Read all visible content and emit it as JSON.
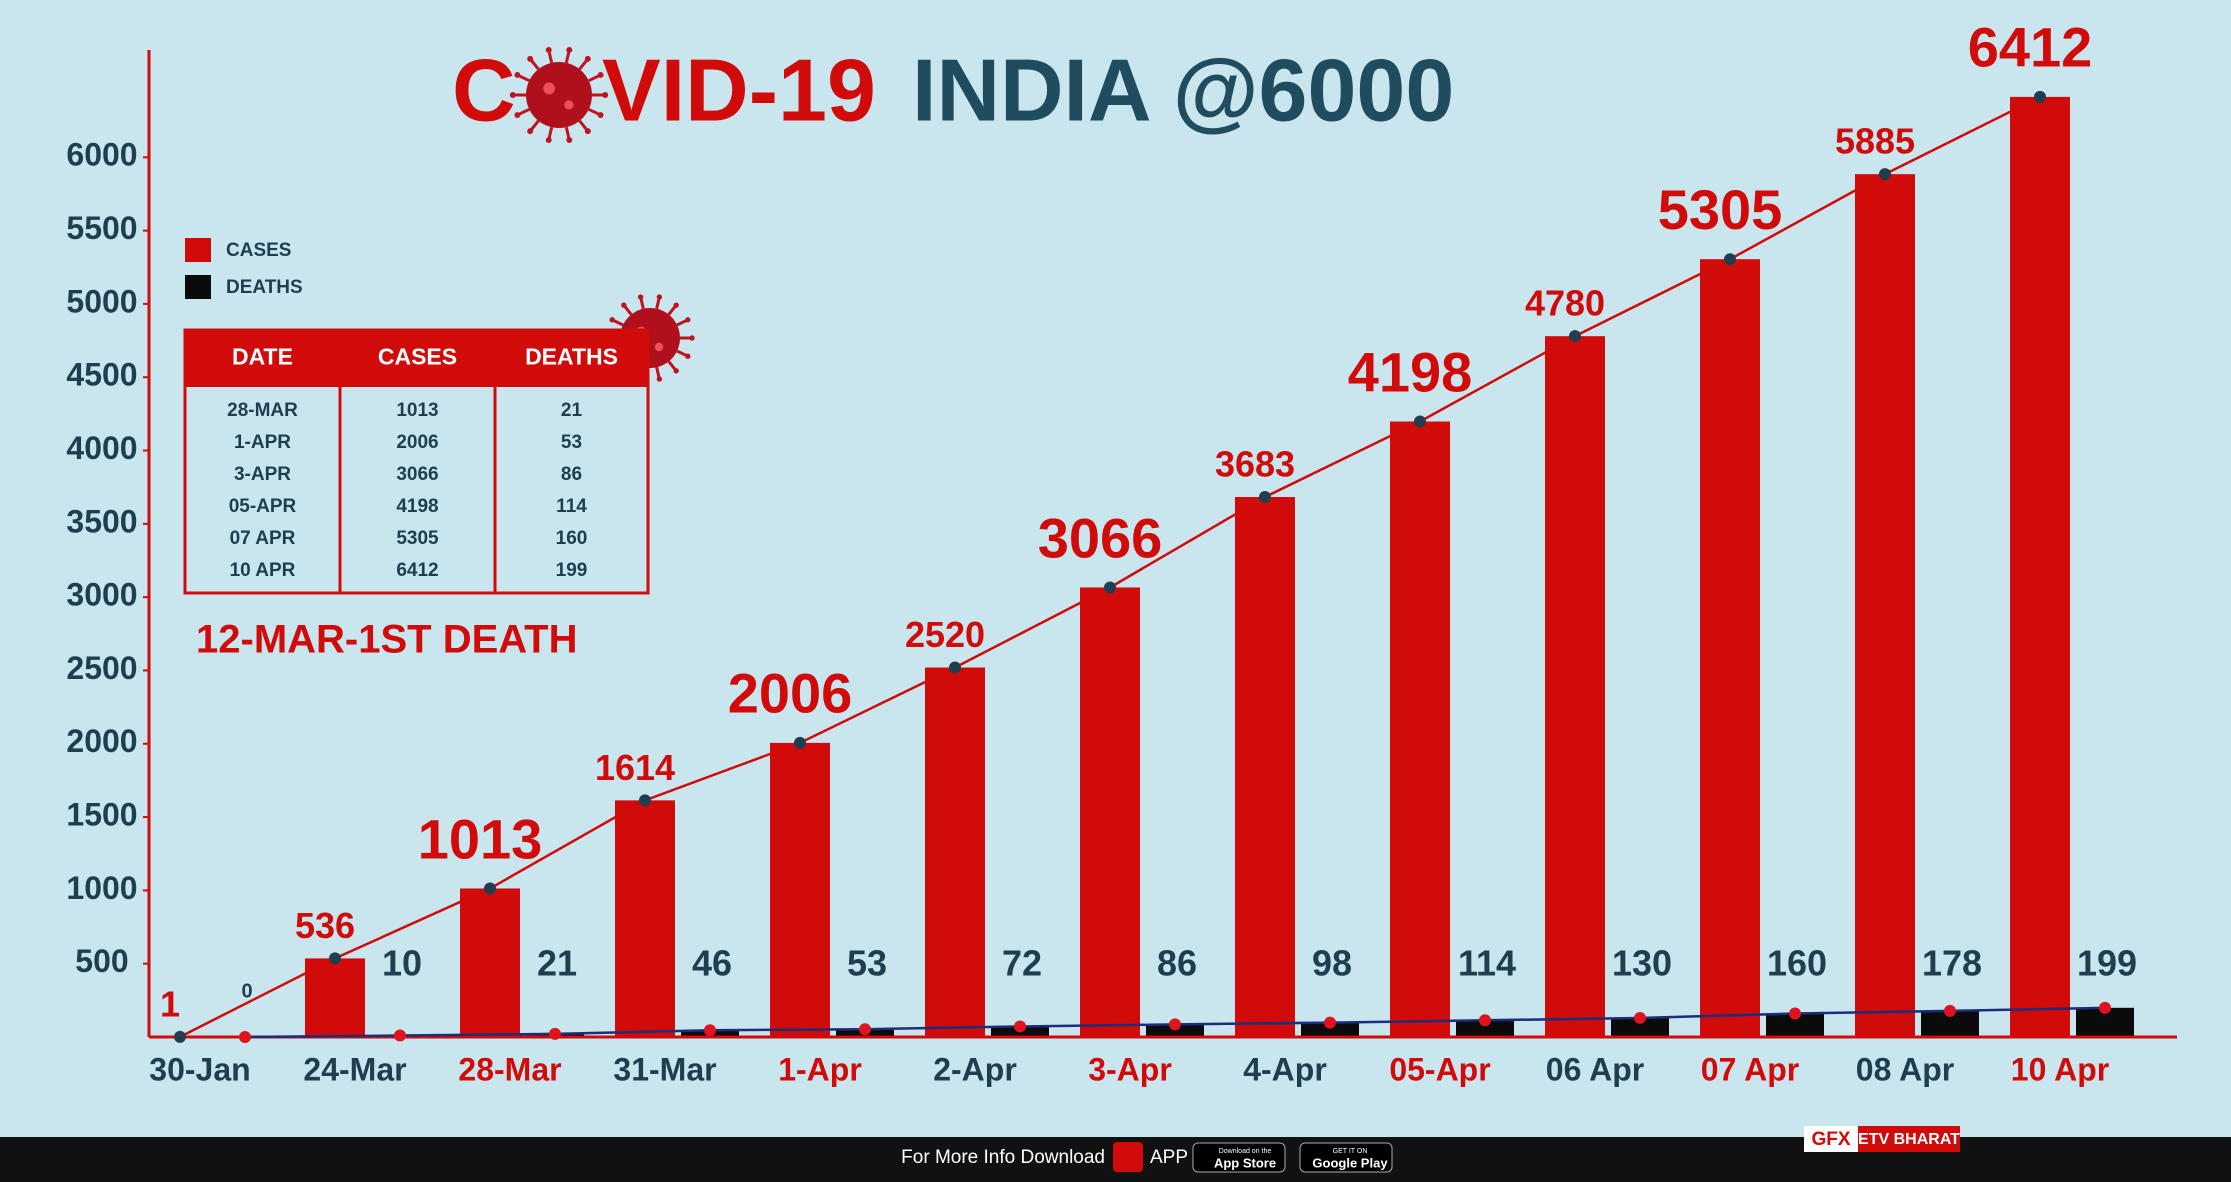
{
  "chart_data": {
    "type": "bar",
    "title": [
      "C",
      "VID-19",
      "INDIA @6000"
    ],
    "categories": [
      "30-Jan",
      "24-Mar",
      "28-Mar",
      "31-Mar",
      "1-Apr",
      "2-Apr",
      "3-Apr",
      "4-Apr",
      "05-Apr",
      "06 Apr",
      "07 Apr",
      "08 Apr",
      "10 Apr"
    ],
    "series": [
      {
        "name": "CASES",
        "color": "#d10a0a",
        "values": [
          1,
          536,
          1013,
          1614,
          2006,
          2520,
          3066,
          3683,
          4198,
          4780,
          5305,
          5885,
          6412
        ]
      },
      {
        "name": "DEATHS",
        "color": "#0b0b0b",
        "values": [
          0,
          10,
          21,
          46,
          53,
          72,
          86,
          98,
          114,
          130,
          160,
          178,
          199
        ]
      }
    ],
    "ylim": [
      0,
      6800
    ],
    "yticks": [
      500,
      1000,
      1500,
      2000,
      2500,
      3000,
      3500,
      4000,
      4500,
      5000,
      5500,
      6000
    ],
    "annotation": "12-MAR-1ST DEATH"
  },
  "table": {
    "columns": [
      "DATE",
      "CASES",
      "DEATHS"
    ],
    "rows": [
      [
        "28-MAR",
        "1013",
        "21"
      ],
      [
        "1-APR",
        "2006",
        "53"
      ],
      [
        "3-APR",
        "3066",
        "86"
      ],
      [
        "05-APR",
        "4198",
        "114"
      ],
      [
        "07 APR",
        "5305",
        "160"
      ],
      [
        "10 APR",
        "6412",
        "199"
      ]
    ]
  },
  "footer": {
    "text": "For More Info Download",
    "app": "APP",
    "app_store": [
      "Download on the",
      "App Store"
    ],
    "google_play": [
      "GET IT ON",
      "Google Play"
    ],
    "gfx": "GFX",
    "brand": "ETV BHARAT"
  }
}
